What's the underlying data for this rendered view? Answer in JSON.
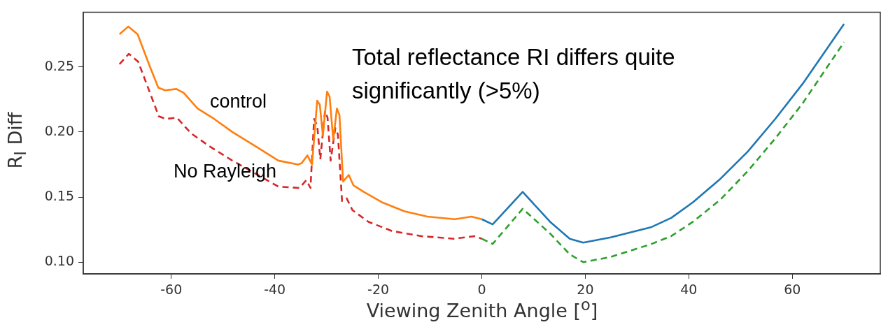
{
  "chart_data": {
    "type": "line",
    "xlabel": "Viewing Zenith Angle [$^{o}$]",
    "ylabel": "R$_{I}$ Diff",
    "xlim": [
      -77,
      77
    ],
    "ylim": [
      0.091,
      0.292
    ],
    "xticks": [
      -60,
      -40,
      -20,
      0,
      20,
      40,
      60
    ],
    "yticks": [
      {
        "value": 0.1,
        "label": "0.10"
      },
      {
        "value": 0.15,
        "label": "0.15"
      },
      {
        "value": 0.2,
        "label": "0.20"
      },
      {
        "value": 0.25,
        "label": "0.25"
      }
    ],
    "grid": false,
    "legend": false,
    "marker": "none",
    "annotations": [
      "Total reflectance RI differs quite significantly (>5%)"
    ],
    "series": [
      {
        "name": "control",
        "color": "#ff7f0e",
        "line_style": "solid",
        "x": [
          -70,
          -68.3,
          -66.5,
          -64.3,
          -62.5,
          -61.2,
          -59,
          -57.6,
          -54.9,
          -51.7,
          -48.2,
          -43.7,
          -39.3,
          -35.5,
          -34.8,
          -33.7,
          -32.8,
          -31.8,
          -31.3,
          -30.7,
          -29.9,
          -29.4,
          -28.7,
          -28,
          -27.5,
          -26.8,
          -25.7,
          -24.8,
          -22.8,
          -19.3,
          -14.9,
          -10.5,
          -5.2,
          -2,
          0
        ],
        "values": [
          0.275,
          0.281,
          0.275,
          0.252,
          0.234,
          0.232,
          0.233,
          0.23,
          0.218,
          0.21,
          0.2,
          0.189,
          0.178,
          0.175,
          0.176,
          0.182,
          0.175,
          0.224,
          0.221,
          0.197,
          0.231,
          0.227,
          0.194,
          0.218,
          0.213,
          0.162,
          0.167,
          0.159,
          0.154,
          0.146,
          0.139,
          0.135,
          0.133,
          0.135,
          0.133
        ]
      },
      {
        "name": "No Rayleigh",
        "color": "#d62728",
        "line_style": "dashed",
        "x": [
          -70,
          -68.2,
          -66.4,
          -64.2,
          -62.4,
          -61,
          -58.9,
          -56.2,
          -52.6,
          -48.2,
          -43.7,
          -39.3,
          -35.2,
          -33.9,
          -33.1,
          -32.4,
          -31.8,
          -31.2,
          -30.3,
          -29.8,
          -29.2,
          -28.3,
          -27.8,
          -27,
          -26.1,
          -25,
          -21.9,
          -17.4,
          -11.7,
          -5.4,
          -1.4,
          0
        ],
        "values": [
          0.252,
          0.26,
          0.254,
          0.231,
          0.212,
          0.21,
          0.211,
          0.199,
          0.189,
          0.178,
          0.168,
          0.158,
          0.157,
          0.163,
          0.157,
          0.21,
          0.205,
          0.179,
          0.216,
          0.211,
          0.178,
          0.203,
          0.198,
          0.147,
          0.149,
          0.14,
          0.131,
          0.124,
          0.12,
          0.118,
          0.12,
          0.118
        ]
      },
      {
        "color": "#1f77b4",
        "line_style": "solid",
        "x": [
          0,
          2.1,
          7.9,
          13.2,
          17,
          19.6,
          24.9,
          32.8,
          36.6,
          40.8,
          46.1,
          51.4,
          56.7,
          62,
          70
        ],
        "values": [
          0.133,
          0.129,
          0.154,
          0.131,
          0.118,
          0.115,
          0.119,
          0.127,
          0.134,
          0.146,
          0.164,
          0.185,
          0.21,
          0.237,
          0.283
        ]
      },
      {
        "color": "#2ca02c",
        "line_style": "dashed",
        "x": [
          0,
          2.1,
          7.9,
          13.2,
          17,
          19.6,
          24.9,
          32.8,
          36.6,
          40.8,
          46.1,
          51.4,
          56.7,
          62,
          70
        ],
        "values": [
          0.118,
          0.114,
          0.141,
          0.122,
          0.106,
          0.1,
          0.104,
          0.114,
          0.12,
          0.131,
          0.148,
          0.17,
          0.195,
          0.222,
          0.269
        ]
      }
    ]
  }
}
